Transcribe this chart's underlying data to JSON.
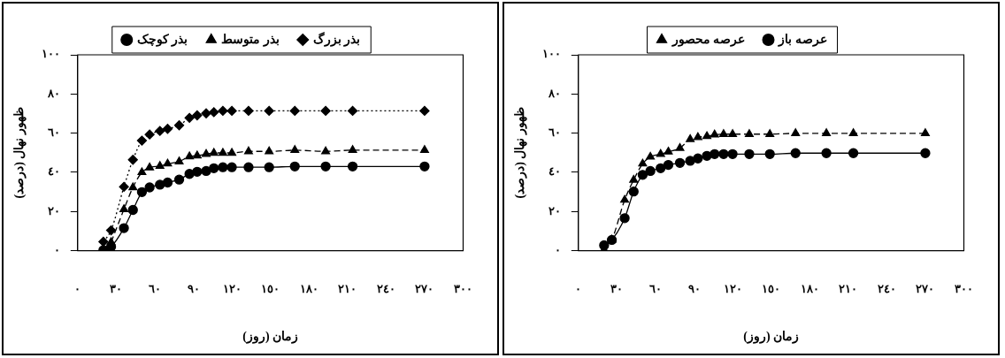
{
  "chart_data": [
    {
      "type": "line",
      "xlabel": "زمان (روز)",
      "ylabel": "ظهور نهال (درصد)",
      "legend": "top",
      "grid": false,
      "x": [
        20,
        26,
        36,
        43,
        50,
        56,
        64,
        70,
        79,
        87,
        93,
        100,
        106,
        113,
        120,
        133,
        149,
        169,
        193,
        214,
        270
      ],
      "xlim": [
        0,
        300
      ],
      "xticks": [
        {
          "value": 0,
          "label": "٠"
        },
        {
          "value": 30,
          "label": "٣٠"
        },
        {
          "value": 60,
          "label": "٦٠"
        },
        {
          "value": 90,
          "label": "٩٠"
        },
        {
          "value": 120,
          "label": "١٢٠"
        },
        {
          "value": 150,
          "label": "١٥٠"
        },
        {
          "value": 180,
          "label": "١٨٠"
        },
        {
          "value": 210,
          "label": "٢١٠"
        },
        {
          "value": 240,
          "label": "٢٤٠"
        },
        {
          "value": 270,
          "label": "٢٧٠"
        },
        {
          "value": 300,
          "label": "٣٠٠"
        }
      ],
      "ylim": [
        0,
        100
      ],
      "yticks": [
        {
          "value": 0,
          "label": "٠"
        },
        {
          "value": 20,
          "label": "٢٠"
        },
        {
          "value": 40,
          "label": "٤٠"
        },
        {
          "value": 60,
          "label": "٦٠"
        },
        {
          "value": 80,
          "label": "٨٠"
        },
        {
          "value": 100,
          "label": "١٠٠"
        }
      ],
      "series": [
        {
          "name": "بذر کوچک",
          "color": "#000000",
          "marker": "circle",
          "line_style": "solid",
          "values": [
            0.3,
            2,
            11.5,
            20.8,
            29.9,
            32.3,
            33.7,
            34.8,
            36.3,
            39.2,
            40.3,
            40.7,
            42.1,
            42.6,
            42.6,
            42.6,
            42.6,
            43,
            43,
            43,
            43
          ]
        },
        {
          "name": "بذر متوسط",
          "color": "#000000",
          "marker": "triangle",
          "line_style": "dashed",
          "values": [
            null,
            4.3,
            21.1,
            32.3,
            40,
            42.4,
            43.2,
            44.4,
            45.5,
            48.1,
            48.5,
            49.3,
            49.9,
            49.9,
            49.9,
            50.7,
            50.7,
            51.3,
            50.7,
            51.3,
            51.3
          ]
        },
        {
          "name": "بذر بزرگ",
          "color": "#000000",
          "marker": "diamond",
          "line_style": "dotted",
          "values": [
            4.6,
            10.4,
            32.6,
            46.4,
            56.2,
            59.3,
            61.1,
            62.2,
            64,
            67.8,
            69.1,
            70.1,
            70.7,
            71.4,
            71.4,
            71.4,
            71.4,
            71.4,
            71.4,
            71.4,
            71.4
          ]
        }
      ]
    },
    {
      "type": "line",
      "xlabel": "زمان (روز)",
      "ylabel": "ظهور نهال (درصد)",
      "legend": "top",
      "grid": false,
      "x": [
        20,
        26,
        36,
        43,
        50,
        56,
        64,
        70,
        79,
        87,
        93,
        100,
        106,
        113,
        120,
        133,
        149,
        169,
        193,
        214,
        270
      ],
      "xlim": [
        0,
        300
      ],
      "xticks": [
        {
          "value": 0,
          "label": "٠"
        },
        {
          "value": 30,
          "label": "٣٠"
        },
        {
          "value": 60,
          "label": "٦٠"
        },
        {
          "value": 90,
          "label": "٩٠"
        },
        {
          "value": 120,
          "label": "١٢٠"
        },
        {
          "value": 150,
          "label": "١٥٠"
        },
        {
          "value": 180,
          "label": "١٨٠"
        },
        {
          "value": 210,
          "label": "٢١٠"
        },
        {
          "value": 240,
          "label": "٢٤٠"
        },
        {
          "value": 270,
          "label": "٢٧٠"
        },
        {
          "value": 300,
          "label": "٣٠٠"
        }
      ],
      "ylim": [
        0,
        100
      ],
      "yticks": [
        {
          "value": 0,
          "label": "٠"
        },
        {
          "value": 20,
          "label": "٢٠"
        },
        {
          "value": 40,
          "label": "٤٠"
        },
        {
          "value": 60,
          "label": "٦٠"
        },
        {
          "value": 80,
          "label": "٨٠"
        },
        {
          "value": 100,
          "label": "١٠٠"
        }
      ],
      "series": [
        {
          "name": "عرصه محصور",
          "color": "#000000",
          "marker": "triangle",
          "line_style": "dashed",
          "values": [
            0.5,
            5.5,
            25.9,
            36.1,
            44.4,
            47.9,
            49.3,
            50.5,
            52.4,
            56.9,
            57.9,
            58.4,
            59.2,
            59.5,
            59.5,
            59.5,
            59.5,
            59.9,
            59.9,
            59.9,
            59.9
          ]
        },
        {
          "name": "عرصه باز",
          "color": "#000000",
          "marker": "circle",
          "line_style": "solid",
          "values": [
            2.8,
            5.5,
            16.6,
            30.2,
            38.7,
            40.7,
            42.1,
            43.8,
            44.8,
            45.9,
            47.1,
            48.4,
            49.3,
            49.3,
            49.3,
            49.3,
            49.3,
            49.8,
            49.8,
            49.8,
            49.8
          ]
        }
      ]
    }
  ]
}
